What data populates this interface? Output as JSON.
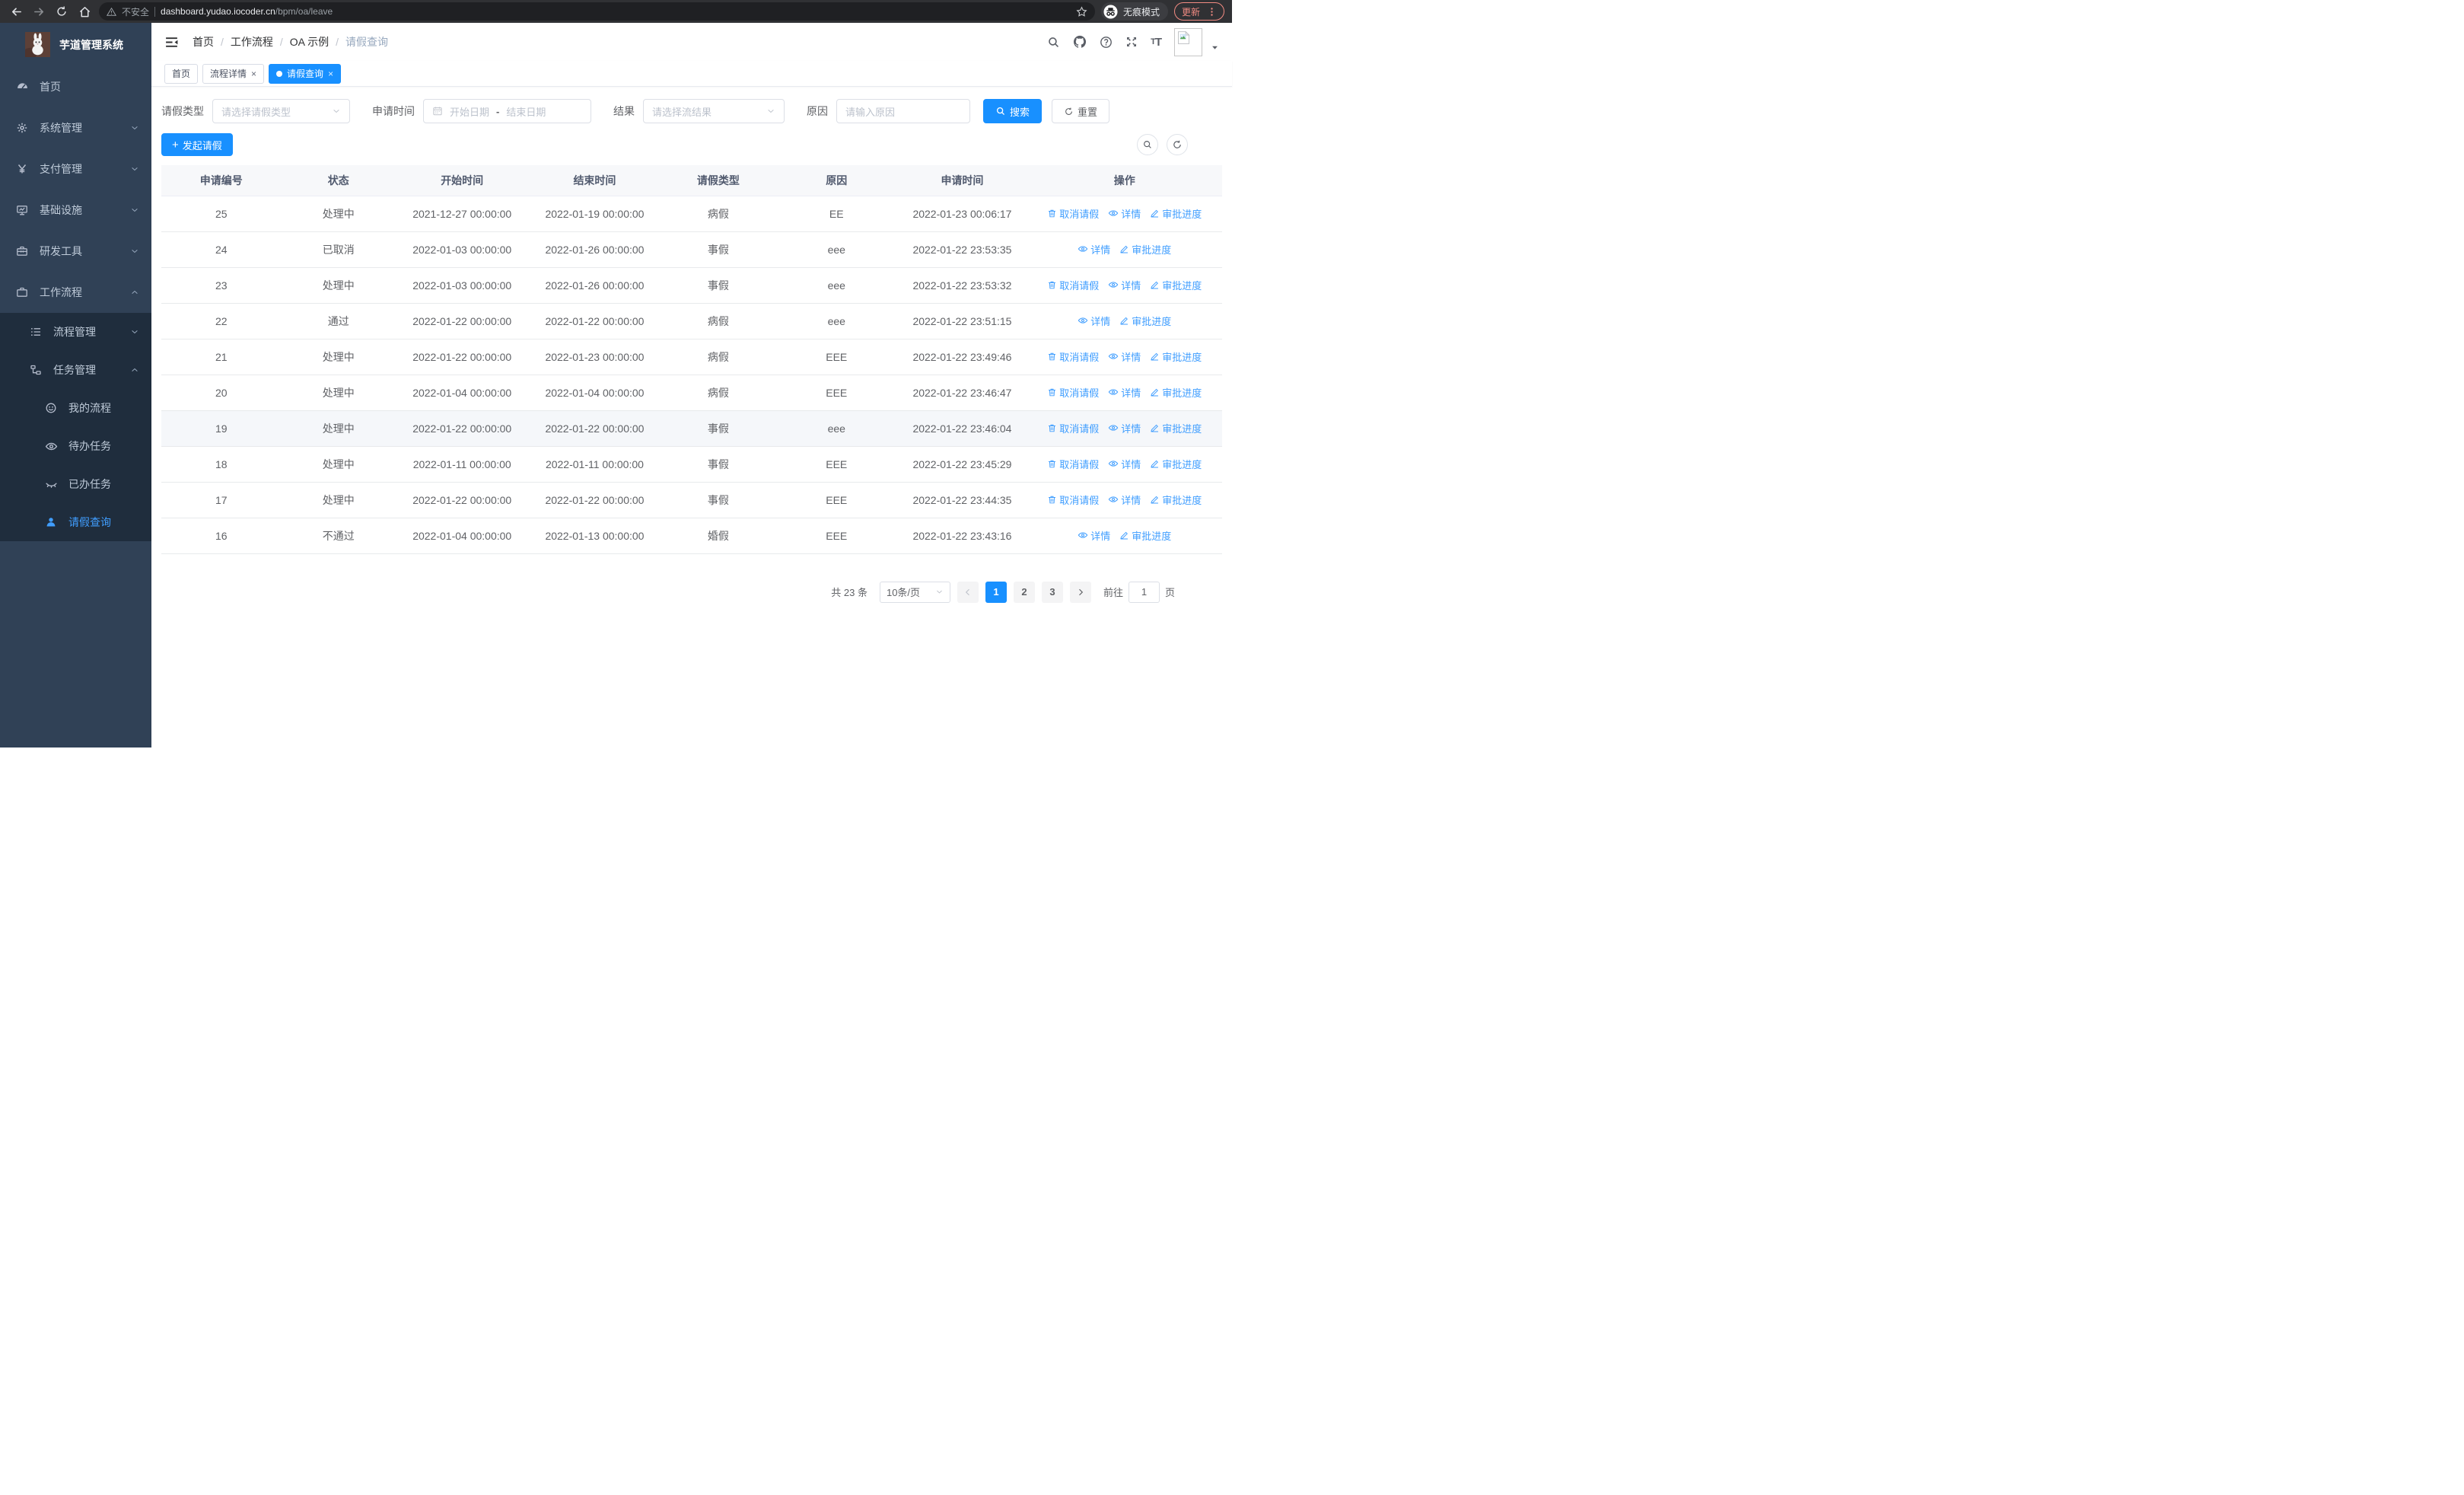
{
  "colors": {
    "primary": "#1890ff",
    "link": "#409eff",
    "sidebar_bg": "#304156",
    "submenu_bg": "#1f2d3d",
    "update_accent": "#f28b82"
  },
  "browser": {
    "security_warning": "不安全",
    "url_host": "dashboard.yudao.iocoder.cn",
    "url_path": "/bpm/oa/leave",
    "incognito_label": "无痕模式",
    "update_label": "更新"
  },
  "sidebar": {
    "app_title": "芋道管理系统",
    "items": [
      {
        "key": "home",
        "label": "首页",
        "icon": "dashboard-icon",
        "level": 1
      },
      {
        "key": "system-mgmt",
        "label": "系统管理",
        "icon": "gear-icon",
        "level": 1,
        "chevron": "down"
      },
      {
        "key": "payment-mgmt",
        "label": "支付管理",
        "icon": "yen-icon",
        "level": 1,
        "chevron": "down"
      },
      {
        "key": "infrastructure",
        "label": "基础设施",
        "icon": "monitor-icon",
        "level": 1,
        "chevron": "down"
      },
      {
        "key": "dev-tools",
        "label": "研发工具",
        "icon": "toolbox-icon",
        "level": 1,
        "chevron": "down"
      },
      {
        "key": "workflow",
        "label": "工作流程",
        "icon": "briefcase-icon",
        "level": 1,
        "chevron": "up"
      },
      {
        "key": "process-mgmt",
        "label": "流程管理",
        "icon": "list-icon",
        "level": 2,
        "chevron": "down",
        "dark": true
      },
      {
        "key": "task-mgmt",
        "label": "任务管理",
        "icon": "tree-icon",
        "level": 2,
        "chevron": "up",
        "dark": true
      },
      {
        "key": "my-process",
        "label": "我的流程",
        "icon": "face-icon",
        "level": 3,
        "dark": true
      },
      {
        "key": "todo-tasks",
        "label": "待办任务",
        "icon": "eye-open-icon",
        "level": 3,
        "dark": true
      },
      {
        "key": "done-tasks",
        "label": "已办任务",
        "icon": "eye-closed-icon",
        "level": 3,
        "dark": true
      },
      {
        "key": "leave-query",
        "label": "请假查询",
        "icon": "user-icon",
        "level": 3,
        "dark": true,
        "active": true
      }
    ]
  },
  "header": {
    "breadcrumb": [
      {
        "label": "首页"
      },
      {
        "label": "工作流程"
      },
      {
        "label": "OA 示例"
      },
      {
        "label": "请假查询",
        "current": true
      }
    ]
  },
  "tabs": [
    {
      "key": "home",
      "label": "首页"
    },
    {
      "key": "process-detail",
      "label": "流程详情",
      "closable": true
    },
    {
      "key": "leave-query",
      "label": "请假查询",
      "closable": true,
      "active": true
    }
  ],
  "filters": {
    "leave_type": {
      "label": "请假类型",
      "placeholder": "请选择请假类型"
    },
    "apply_time": {
      "label": "申请时间",
      "start_placeholder": "开始日期",
      "separator": "-",
      "end_placeholder": "结束日期"
    },
    "result": {
      "label": "结果",
      "placeholder": "请选择流结果"
    },
    "reason": {
      "label": "原因",
      "placeholder": "请输入原因"
    },
    "search_label": "搜索",
    "reset_label": "重置"
  },
  "toolbar": {
    "create_label": "发起请假"
  },
  "table": {
    "columns": [
      "申请编号",
      "状态",
      "开始时间",
      "结束时间",
      "请假类型",
      "原因",
      "申请时间",
      "操作"
    ],
    "action_defs": {
      "cancel": {
        "label": "取消请假",
        "icon": "trash-icon"
      },
      "detail": {
        "label": "详情",
        "icon": "eye-icon"
      },
      "progress": {
        "label": "审批进度",
        "icon": "edit-icon"
      }
    },
    "rows": [
      {
        "id": "25",
        "status": "处理中",
        "start": "2021-12-27 00:00:00",
        "end": "2022-01-19 00:00:00",
        "type": "病假",
        "reason": "EE",
        "apply_time": "2022-01-23 00:06:17",
        "actions": [
          "cancel",
          "detail",
          "progress"
        ]
      },
      {
        "id": "24",
        "status": "已取消",
        "start": "2022-01-03 00:00:00",
        "end": "2022-01-26 00:00:00",
        "type": "事假",
        "reason": "eee",
        "apply_time": "2022-01-22 23:53:35",
        "actions": [
          "detail",
          "progress"
        ]
      },
      {
        "id": "23",
        "status": "处理中",
        "start": "2022-01-03 00:00:00",
        "end": "2022-01-26 00:00:00",
        "type": "事假",
        "reason": "eee",
        "apply_time": "2022-01-22 23:53:32",
        "actions": [
          "cancel",
          "detail",
          "progress"
        ]
      },
      {
        "id": "22",
        "status": "通过",
        "start": "2022-01-22 00:00:00",
        "end": "2022-01-22 00:00:00",
        "type": "病假",
        "reason": "eee",
        "apply_time": "2022-01-22 23:51:15",
        "actions": [
          "detail",
          "progress"
        ]
      },
      {
        "id": "21",
        "status": "处理中",
        "start": "2022-01-22 00:00:00",
        "end": "2022-01-23 00:00:00",
        "type": "病假",
        "reason": "EEE",
        "apply_time": "2022-01-22 23:49:46",
        "actions": [
          "cancel",
          "detail",
          "progress"
        ]
      },
      {
        "id": "20",
        "status": "处理中",
        "start": "2022-01-04 00:00:00",
        "end": "2022-01-04 00:00:00",
        "type": "病假",
        "reason": "EEE",
        "apply_time": "2022-01-22 23:46:47",
        "actions": [
          "cancel",
          "detail",
          "progress"
        ]
      },
      {
        "id": "19",
        "status": "处理中",
        "start": "2022-01-22 00:00:00",
        "end": "2022-01-22 00:00:00",
        "type": "事假",
        "reason": "eee",
        "apply_time": "2022-01-22 23:46:04",
        "actions": [
          "cancel",
          "detail",
          "progress"
        ],
        "highlight": true
      },
      {
        "id": "18",
        "status": "处理中",
        "start": "2022-01-11 00:00:00",
        "end": "2022-01-11 00:00:00",
        "type": "事假",
        "reason": "EEE",
        "apply_time": "2022-01-22 23:45:29",
        "actions": [
          "cancel",
          "detail",
          "progress"
        ]
      },
      {
        "id": "17",
        "status": "处理中",
        "start": "2022-01-22 00:00:00",
        "end": "2022-01-22 00:00:00",
        "type": "事假",
        "reason": "EEE",
        "apply_time": "2022-01-22 23:44:35",
        "actions": [
          "cancel",
          "detail",
          "progress"
        ]
      },
      {
        "id": "16",
        "status": "不通过",
        "start": "2022-01-04 00:00:00",
        "end": "2022-01-13 00:00:00",
        "type": "婚假",
        "reason": "EEE",
        "apply_time": "2022-01-22 23:43:16",
        "actions": [
          "detail",
          "progress"
        ]
      }
    ]
  },
  "pagination": {
    "total_label": "共 23 条",
    "page_size_label": "10条/页",
    "pages": [
      "1",
      "2",
      "3"
    ],
    "active_page": "1",
    "goto_prefix": "前往",
    "goto_value": "1",
    "goto_suffix": "页"
  }
}
